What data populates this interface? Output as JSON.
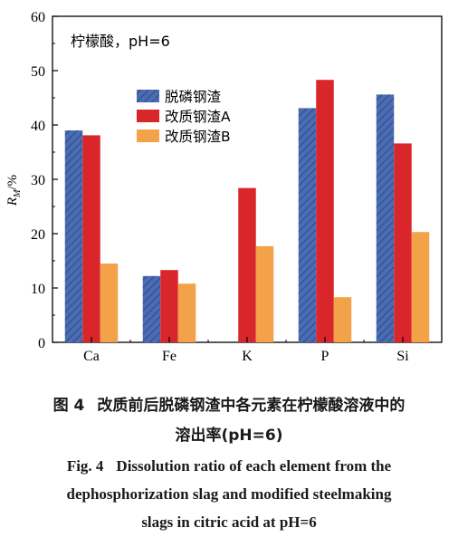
{
  "chart_data": {
    "type": "bar",
    "annotation": "柠檬酸，pH=6",
    "ylabel_main": "R",
    "ylabel_sub": "M",
    "ylabel_unit": "/%",
    "xlabel": "",
    "ylim": [
      0,
      60
    ],
    "yticks": [
      0,
      10,
      20,
      30,
      40,
      50,
      60
    ],
    "categories": [
      "Ca",
      "Fe",
      "K",
      "P",
      "Si"
    ],
    "series": [
      {
        "name": "脱磷钢渣",
        "color": "#4a6cb5",
        "pattern": "hatch",
        "values": [
          39.0,
          12.2,
          null,
          43.1,
          45.6
        ]
      },
      {
        "name": "改质钢渣A",
        "color": "#d9262b",
        "pattern": "solid",
        "values": [
          38.1,
          13.3,
          28.4,
          48.3,
          36.6
        ]
      },
      {
        "name": "改质钢渣B",
        "color": "#f4a24a",
        "pattern": "solid",
        "values": [
          14.5,
          10.8,
          17.7,
          8.3,
          20.3
        ]
      }
    ],
    "legend_position": "upper-left-inside",
    "grid": false
  },
  "caption": {
    "cn_label": "图 4",
    "cn_line1": "改质前后脱磷钢渣中各元素在柠檬酸溶液中的",
    "cn_line2": "溶出率(pH=6)",
    "en_label": "Fig. 4",
    "en_line1": "Dissolution ratio of each element from the",
    "en_line2": "dephosphorization slag and modified steelmaking",
    "en_line3": "slags in citric acid at pH=6"
  }
}
